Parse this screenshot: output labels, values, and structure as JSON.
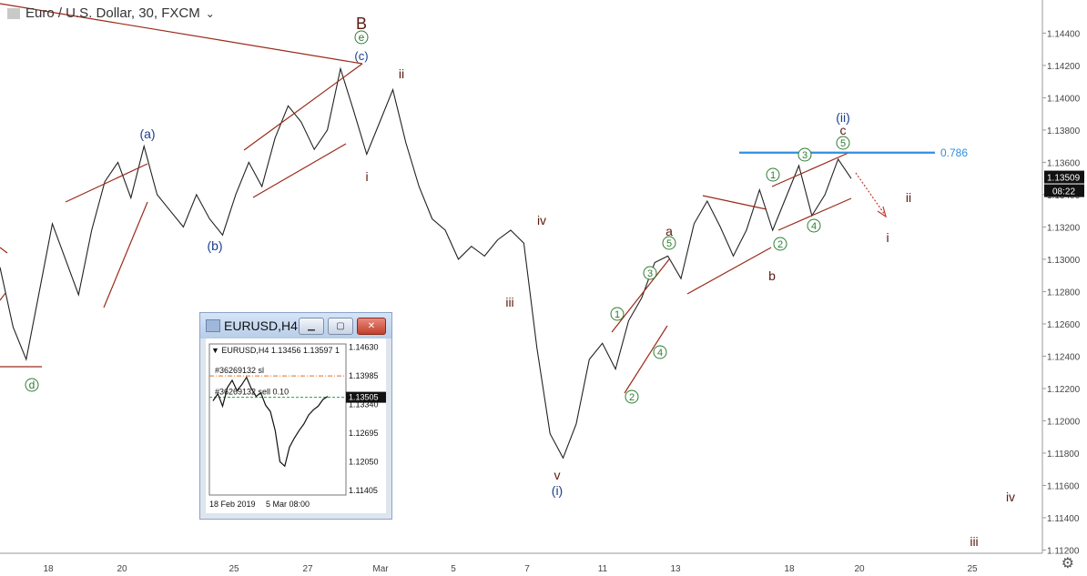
{
  "header": {
    "symbol_title": "Euro / U.S. Dollar, 30, FXCM"
  },
  "chart_data": [
    {
      "type": "line",
      "title": "Euro / U.S. Dollar, 30, FXCM",
      "x_tick_labels": [
        "18",
        "20",
        "25",
        "27",
        "Mar",
        "5",
        "7",
        "11",
        "13",
        "18",
        "20",
        "25"
      ],
      "y_tick_labels": [
        "1.14400",
        "1.14200",
        "1.14000",
        "1.13800",
        "1.13600",
        "1.13400",
        "1.13200",
        "1.13000",
        "1.12800",
        "1.12600",
        "1.12400",
        "1.12200",
        "1.12000",
        "1.11800",
        "1.11600",
        "1.11400",
        "1.11200"
      ],
      "ylim": [
        1.1118,
        1.1456
      ],
      "price_series": [
        [
          "18-1",
          1.1295
        ],
        [
          "18-2",
          1.1258
        ],
        [
          "18-3",
          1.1238
        ],
        [
          "18-4",
          1.128
        ],
        [
          "19-1",
          1.1322
        ],
        [
          "19-2",
          1.13
        ],
        [
          "19-3",
          1.1278
        ],
        [
          "19-4",
          1.1318
        ],
        [
          "20-1",
          1.1348
        ],
        [
          "20-2",
          1.136
        ],
        [
          "20-3",
          1.1338
        ],
        [
          "20-4",
          1.137
        ],
        [
          "21-1",
          1.134
        ],
        [
          "21-2",
          1.133
        ],
        [
          "21-3",
          1.132
        ],
        [
          "22-1",
          1.134
        ],
        [
          "22-2",
          1.1325
        ],
        [
          "22-3",
          1.1315
        ],
        [
          "25-1",
          1.134
        ],
        [
          "25-2",
          1.136
        ],
        [
          "26-1",
          1.1345
        ],
        [
          "26-2",
          1.1375
        ],
        [
          "26-3",
          1.1395
        ],
        [
          "27-1",
          1.1385
        ],
        [
          "27-2",
          1.1368
        ],
        [
          "27-3",
          1.138
        ],
        [
          "28-1",
          1.1418
        ],
        [
          "28-2",
          1.1392
        ],
        [
          "28-3",
          1.1365
        ],
        [
          "1-1",
          1.1385
        ],
        [
          "1-2",
          1.1405
        ],
        [
          "1-3",
          1.1372
        ],
        [
          "4-1",
          1.1345
        ],
        [
          "4-2",
          1.1325
        ],
        [
          "5-1",
          1.1318
        ],
        [
          "5-2",
          1.13
        ],
        [
          "6-1",
          1.1308
        ],
        [
          "6-2",
          1.1302
        ],
        [
          "7-1",
          1.1312
        ],
        [
          "7-2",
          1.1318
        ],
        [
          "8-1",
          1.131
        ],
        [
          "8-2",
          1.1245
        ],
        [
          "8-3",
          1.1192
        ],
        [
          "8-4",
          1.1177
        ],
        [
          "11-1",
          1.1198
        ],
        [
          "11-2",
          1.1238
        ],
        [
          "11-3",
          1.1248
        ],
        [
          "12-1",
          1.1232
        ],
        [
          "12-2",
          1.1262
        ],
        [
          "12-3",
          1.1276
        ],
        [
          "13-1",
          1.1298
        ],
        [
          "13-2",
          1.1302
        ],
        [
          "14-1",
          1.1288
        ],
        [
          "14-2",
          1.1322
        ],
        [
          "14-3",
          1.1336
        ],
        [
          "15-1",
          1.132
        ],
        [
          "15-2",
          1.1302
        ],
        [
          "15-3",
          1.1318
        ],
        [
          "18-1",
          1.1343
        ],
        [
          "18-2",
          1.1318
        ],
        [
          "18-3",
          1.1338
        ],
        [
          "19-1",
          1.1358
        ],
        [
          "19-2",
          1.1327
        ],
        [
          "19-3",
          1.134
        ],
        [
          "19-4",
          1.1362
        ],
        [
          "20-1",
          1.135
        ]
      ],
      "fib_level": {
        "label": "0.786",
        "price": 1.1366,
        "color": "#2f8ee0"
      },
      "last_price": {
        "value": "1.13509",
        "countdown": "08:22"
      },
      "wave_labels": [
        "B",
        "e",
        "(c)",
        "(a)",
        "(b)",
        "d",
        "ii",
        "i",
        "iv",
        "iii",
        "v",
        "(i)",
        "a",
        "5",
        "3",
        "1",
        "2",
        "4",
        "b",
        "(ii)",
        "c",
        "5",
        "3",
        "1",
        "2",
        "4",
        "ii",
        "i",
        "iv",
        "iii"
      ],
      "colors": {
        "up_candle": "#222222",
        "channel": "#9a2a1a",
        "wave_blue": "#1b3f8c",
        "wave_green": "#2e7d32",
        "wave_brown": "#5a1a0e",
        "fib": "#2f8ee0"
      }
    },
    {
      "type": "line",
      "title": "EURUSD,H4",
      "legend": "EURUSD,H4  1.13456 1.13597 1",
      "x_tick_labels": [
        "18 Feb 2019",
        "5 Mar 08:00"
      ],
      "y_tick_labels": [
        "1.14630",
        "1.13985",
        "1.13340",
        "1.12695",
        "1.12050",
        "1.11405"
      ],
      "ylim": [
        1.113,
        1.147
      ],
      "order_label": "#36269132 sl",
      "order_price": 1.1398,
      "sell_label": "#36269132 sell 0.10",
      "sell_price": 1.135,
      "last_price": "1.13505",
      "price_series": [
        [
          0,
          1.1342
        ],
        [
          1,
          1.1358
        ],
        [
          2,
          1.133
        ],
        [
          3,
          1.1372
        ],
        [
          4,
          1.1388
        ],
        [
          5,
          1.1365
        ],
        [
          6,
          1.1378
        ],
        [
          7,
          1.1395
        ],
        [
          8,
          1.137
        ],
        [
          9,
          1.1352
        ],
        [
          10,
          1.136
        ],
        [
          11,
          1.1332
        ],
        [
          12,
          1.1318
        ],
        [
          13,
          1.1275
        ],
        [
          14,
          1.1205
        ],
        [
          15,
          1.1195
        ],
        [
          16,
          1.1238
        ],
        [
          17,
          1.1258
        ],
        [
          18,
          1.1275
        ],
        [
          19,
          1.129
        ],
        [
          20,
          1.131
        ],
        [
          21,
          1.1322
        ],
        [
          22,
          1.133
        ],
        [
          23,
          1.1345
        ],
        [
          24,
          1.1352
        ]
      ]
    }
  ],
  "inset": {
    "title": "EURUSD,H4",
    "minimize": "▁",
    "maximize": "▢",
    "close": "✕"
  },
  "controls": {
    "settings_icon": "gear-icon",
    "dropdown_icon": "chevron-down-icon"
  }
}
